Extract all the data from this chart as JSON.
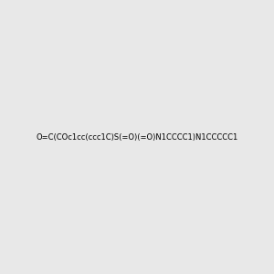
{
  "smiles": "O=C(COc1cc(ccc1C)S(=O)(=O)N1CCCC1)N1CCCCC1",
  "image_size": 300,
  "background_color": "#e8e8e8"
}
